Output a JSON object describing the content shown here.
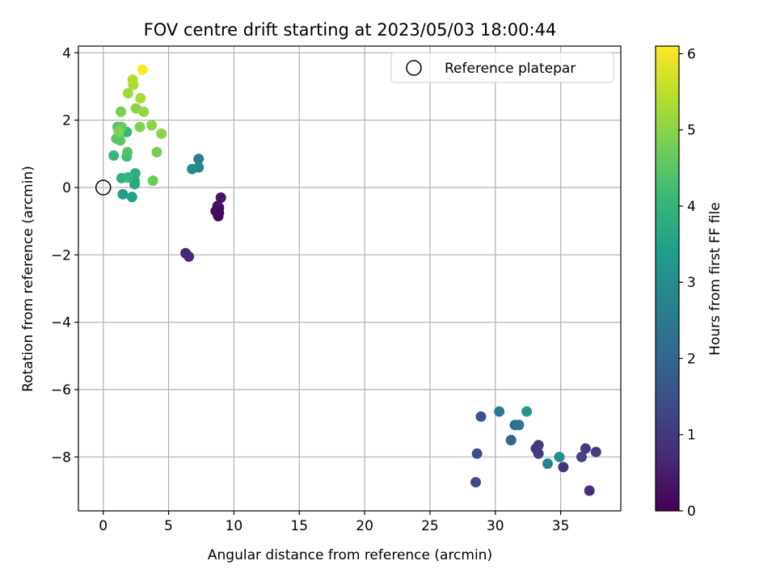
{
  "chart_data": {
    "type": "scatter",
    "title": "FOV centre drift starting at 2023/05/03 18:00:44",
    "xlabel": "Angular distance from reference (arcmin)",
    "ylabel": "Rotation from reference (arcmin)",
    "xlim": [
      -1.9,
      39.6
    ],
    "ylim": [
      -9.6,
      4.2
    ],
    "xticks": [
      0,
      5,
      10,
      15,
      20,
      25,
      30,
      35
    ],
    "yticks": [
      -8,
      -6,
      -4,
      -2,
      0,
      2,
      4
    ],
    "grid": true,
    "legend": {
      "placement": "top-right",
      "entries": [
        "Reference platepar"
      ]
    },
    "reference": {
      "x": 0,
      "y": 0,
      "marker": "open-circle"
    },
    "colorbar": {
      "label": "Hours from first FF file",
      "colormap": "viridis",
      "range": [
        0,
        6.1
      ],
      "ticks": [
        0,
        1,
        2,
        3,
        4,
        5,
        6
      ]
    },
    "points": [
      {
        "x": 8.8,
        "y": -0.85,
        "c": 0.05
      },
      {
        "x": 8.85,
        "y": -0.75,
        "c": 0.1
      },
      {
        "x": 8.6,
        "y": -0.7,
        "c": 0.15
      },
      {
        "x": 8.75,
        "y": -0.55,
        "c": 0.2
      },
      {
        "x": 8.85,
        "y": -0.6,
        "c": 0.25
      },
      {
        "x": 9.0,
        "y": -0.3,
        "c": 0.35
      },
      {
        "x": 6.3,
        "y": -1.95,
        "c": 0.6
      },
      {
        "x": 6.55,
        "y": -2.05,
        "c": 0.7
      },
      {
        "x": 37.2,
        "y": -9.0,
        "c": 0.8
      },
      {
        "x": 35.2,
        "y": -8.3,
        "c": 0.9
      },
      {
        "x": 33.3,
        "y": -7.9,
        "c": 1.0
      },
      {
        "x": 33.1,
        "y": -7.75,
        "c": 1.0
      },
      {
        "x": 33.3,
        "y": -7.65,
        "c": 1.05
      },
      {
        "x": 36.9,
        "y": -7.75,
        "c": 1.1
      },
      {
        "x": 37.7,
        "y": -7.85,
        "c": 1.15
      },
      {
        "x": 36.6,
        "y": -8.0,
        "c": 1.25
      },
      {
        "x": 28.5,
        "y": -8.75,
        "c": 1.35
      },
      {
        "x": 28.6,
        "y": -7.9,
        "c": 1.5
      },
      {
        "x": 28.9,
        "y": -6.8,
        "c": 1.6
      },
      {
        "x": 31.2,
        "y": -7.5,
        "c": 2.0
      },
      {
        "x": 31.5,
        "y": -7.05,
        "c": 2.2
      },
      {
        "x": 31.8,
        "y": -7.05,
        "c": 2.3
      },
      {
        "x": 30.3,
        "y": -6.65,
        "c": 2.5
      },
      {
        "x": 34.0,
        "y": -8.2,
        "c": 2.7
      },
      {
        "x": 34.9,
        "y": -8.0,
        "c": 3.0
      },
      {
        "x": 32.4,
        "y": -6.65,
        "c": 3.2
      },
      {
        "x": 7.3,
        "y": 0.85,
        "c": 2.6
      },
      {
        "x": 7.3,
        "y": 0.6,
        "c": 2.8
      },
      {
        "x": 6.8,
        "y": 0.55,
        "c": 3.0
      },
      {
        "x": 1.5,
        "y": -0.2,
        "c": 3.4
      },
      {
        "x": 2.2,
        "y": -0.28,
        "c": 3.5
      },
      {
        "x": 2.4,
        "y": 0.1,
        "c": 3.6
      },
      {
        "x": 2.4,
        "y": 0.2,
        "c": 3.7
      },
      {
        "x": 2.45,
        "y": 0.42,
        "c": 3.8
      },
      {
        "x": 1.4,
        "y": 0.28,
        "c": 3.9
      },
      {
        "x": 1.9,
        "y": 0.3,
        "c": 4.0
      },
      {
        "x": 0.8,
        "y": 0.95,
        "c": 4.0
      },
      {
        "x": 1.8,
        "y": 1.65,
        "c": 4.1
      },
      {
        "x": 1.8,
        "y": 0.92,
        "c": 4.2
      },
      {
        "x": 1.85,
        "y": 1.05,
        "c": 4.4
      },
      {
        "x": 1.1,
        "y": 1.8,
        "c": 4.4
      },
      {
        "x": 1.3,
        "y": 1.4,
        "c": 4.5
      },
      {
        "x": 1.0,
        "y": 1.45,
        "c": 4.5
      },
      {
        "x": 1.4,
        "y": 1.8,
        "c": 4.6
      },
      {
        "x": 3.8,
        "y": 0.2,
        "c": 4.7
      },
      {
        "x": 4.1,
        "y": 1.05,
        "c": 4.8
      },
      {
        "x": 1.35,
        "y": 2.25,
        "c": 4.8
      },
      {
        "x": 1.2,
        "y": 1.65,
        "c": 4.9
      },
      {
        "x": 2.8,
        "y": 1.8,
        "c": 4.9
      },
      {
        "x": 2.5,
        "y": 2.35,
        "c": 5.0
      },
      {
        "x": 3.1,
        "y": 2.25,
        "c": 5.1
      },
      {
        "x": 3.7,
        "y": 1.85,
        "c": 5.0
      },
      {
        "x": 4.45,
        "y": 1.6,
        "c": 5.0
      },
      {
        "x": 1.9,
        "y": 2.8,
        "c": 5.2
      },
      {
        "x": 2.85,
        "y": 2.65,
        "c": 5.3
      },
      {
        "x": 2.3,
        "y": 3.05,
        "c": 5.3
      },
      {
        "x": 2.25,
        "y": 3.2,
        "c": 5.4
      },
      {
        "x": 3.0,
        "y": 3.5,
        "c": 6.1
      }
    ]
  }
}
